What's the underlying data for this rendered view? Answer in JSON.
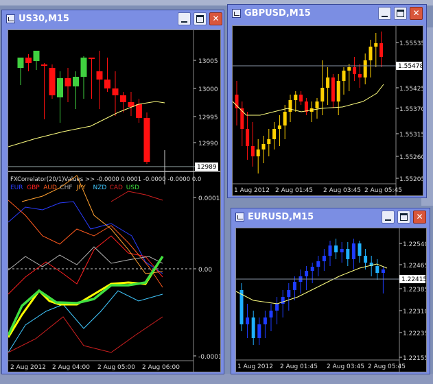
{
  "windows": {
    "us30": {
      "title": "US30,M15",
      "price_ticks": [
        "13005",
        "13000",
        "12995",
        "12990"
      ],
      "current_price": "12989",
      "indicator": {
        "header": "FXCorrelator(20/1)Values >> -0.0000 0.0001 -0.0000 -0.0000 0.0",
        "currencies": [
          {
            "code": "EUR",
            "color": "#2a3cff"
          },
          {
            "code": "GBP",
            "color": "#ff2020"
          },
          {
            "code": "AUD",
            "color": "#ff5a1e"
          },
          {
            "code": "CHF",
            "color": "#b0b0b0"
          },
          {
            "code": "JPY",
            "color": "#ffa030"
          },
          {
            "code": "NZD",
            "color": "#40c8ff"
          },
          {
            "code": "CAD",
            "color": "#d02020"
          },
          {
            "code": "USD",
            "color": "#40e040"
          }
        ],
        "ticks": [
          "0.0001",
          "0.00",
          "-0.0001"
        ]
      },
      "time_ticks": [
        "2 Aug 2012",
        "2 Aug 04:00",
        "2 Aug 05:00",
        "2 Aug 06:00"
      ]
    },
    "gbpusd": {
      "title": "GBPUSD,M15",
      "price_ticks": [
        "1.55535",
        "1.55425",
        "1.55370",
        "1.55315",
        "1.55260",
        "1.55205"
      ],
      "current_price": "1.55478",
      "time_ticks": [
        "1 Aug 2012",
        "2 Aug 01:45",
        "2 Aug 03:45",
        "2 Aug 05:45"
      ]
    },
    "eurusd": {
      "title": "EURUSD,M15",
      "price_ticks": [
        "1.22540",
        "1.22465",
        "1.22385",
        "1.22310",
        "1.22235",
        "1.22155"
      ],
      "current_price": "1.22415",
      "time_ticks": [
        "1 Aug 2012",
        "2 Aug 01:45",
        "2 Aug 03:45",
        "2 Aug 05:45"
      ]
    }
  },
  "colors": {
    "bull_us30": "#40d040",
    "bear_us30": "#ff1010",
    "bull_gbp": "#ffd000",
    "bear_gbp": "#ff1010",
    "bull_eur": "#1e3cff",
    "bear_eur": "#20b0ff",
    "ma": "#ffff80"
  }
}
